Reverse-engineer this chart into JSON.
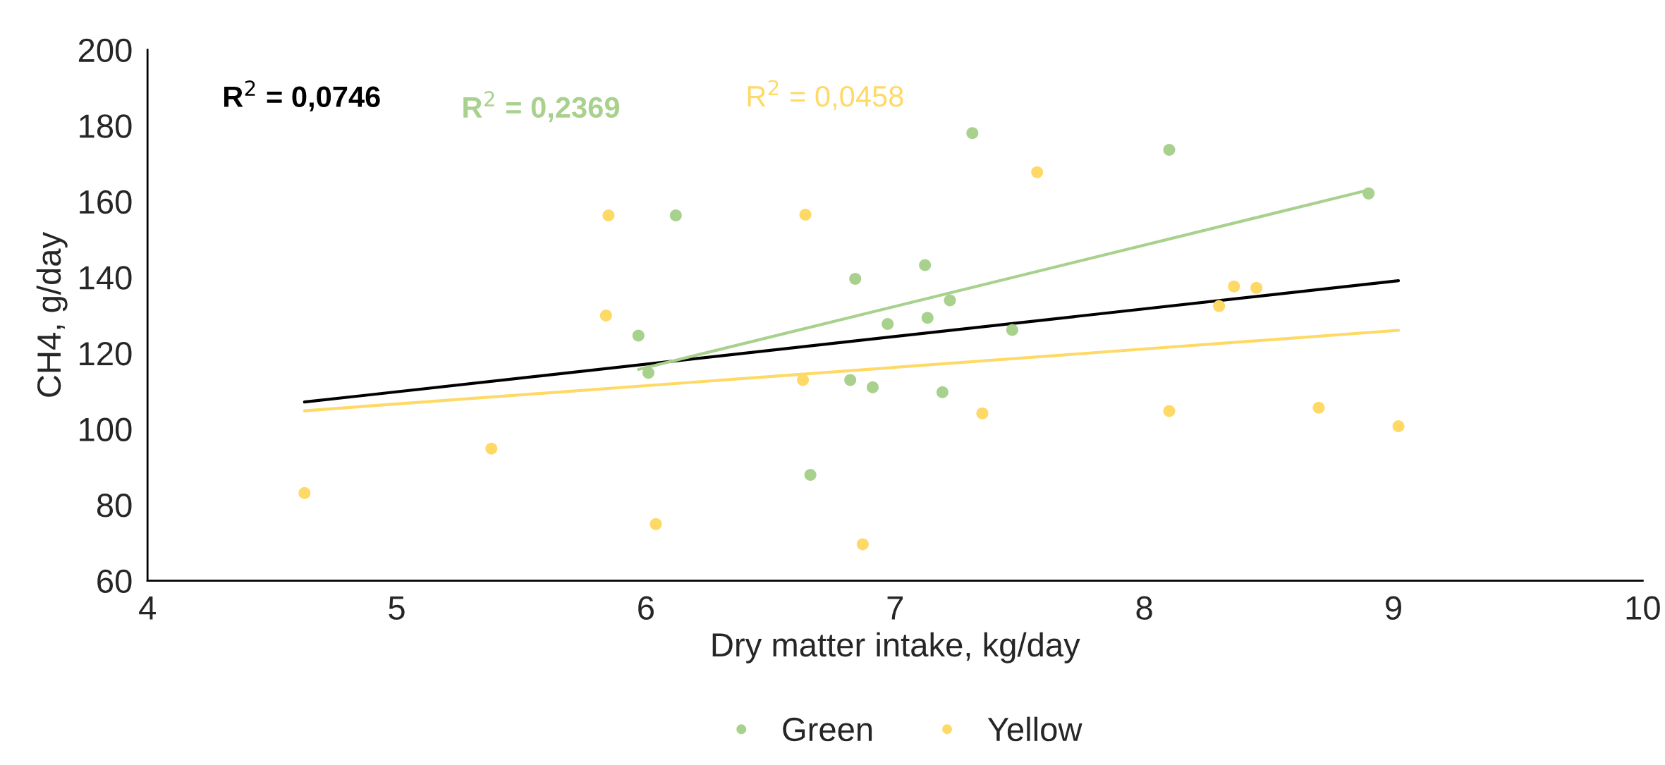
{
  "chart_data": {
    "type": "scatter",
    "xlabel": "Dry matter intake, kg/day",
    "ylabel": "CH4, g/day",
    "xlim": [
      4,
      10
    ],
    "xticks": [
      4,
      5,
      6,
      7,
      8,
      9,
      10
    ],
    "ylim": [
      60,
      200
    ],
    "yticks": [
      60,
      80,
      100,
      120,
      140,
      160,
      180,
      200
    ],
    "grid": false,
    "legend": "bottom",
    "marker": "circle",
    "annotations": [
      "R$^{2}$ = 0,0746",
      "R$^{2}$ = 0,2369",
      "R$^{2}$ = 0,0458"
    ],
    "series": [
      {
        "name": "Green",
        "color": "#a9d18e",
        "x": [
          7.31,
          8.1,
          8.9,
          6.12,
          7.12,
          6.84,
          7.22,
          7.13,
          6.97,
          7.47,
          5.97,
          6.01,
          6.82,
          6.91,
          7.19,
          6.66
        ],
        "values": [
          178.0,
          173.6,
          162.1,
          156.3,
          143.2,
          139.6,
          133.9,
          129.3,
          127.7,
          126.1,
          124.6,
          114.8,
          112.9,
          111.0,
          109.7,
          87.9
        ]
      },
      {
        "name": "Yellow",
        "color": "#ffd966",
        "x": [
          4.63,
          5.38,
          5.85,
          5.84,
          6.04,
          6.64,
          6.63,
          6.87,
          7.35,
          7.57,
          8.1,
          8.3,
          8.36,
          8.45,
          8.7,
          9.02
        ],
        "values": [
          83.1,
          94.8,
          156.3,
          129.9,
          74.9,
          156.5,
          112.9,
          69.6,
          104.1,
          167.7,
          104.7,
          132.4,
          137.6,
          137.2,
          105.6,
          100.7
        ]
      },
      {
        "type": "line",
        "marker": "none",
        "color": "#000000",
        "x": [
          4.63,
          9.02
        ],
        "values": [
          107.1,
          139.1
        ]
      },
      {
        "type": "line",
        "marker": "none",
        "color": "#a9d18e",
        "x": [
          5.97,
          8.9
        ],
        "values": [
          115.7,
          163.0
        ]
      },
      {
        "type": "line",
        "marker": "none",
        "color": "#ffd966",
        "x": [
          4.63,
          9.02
        ],
        "values": [
          104.8,
          126.0
        ]
      }
    ]
  }
}
